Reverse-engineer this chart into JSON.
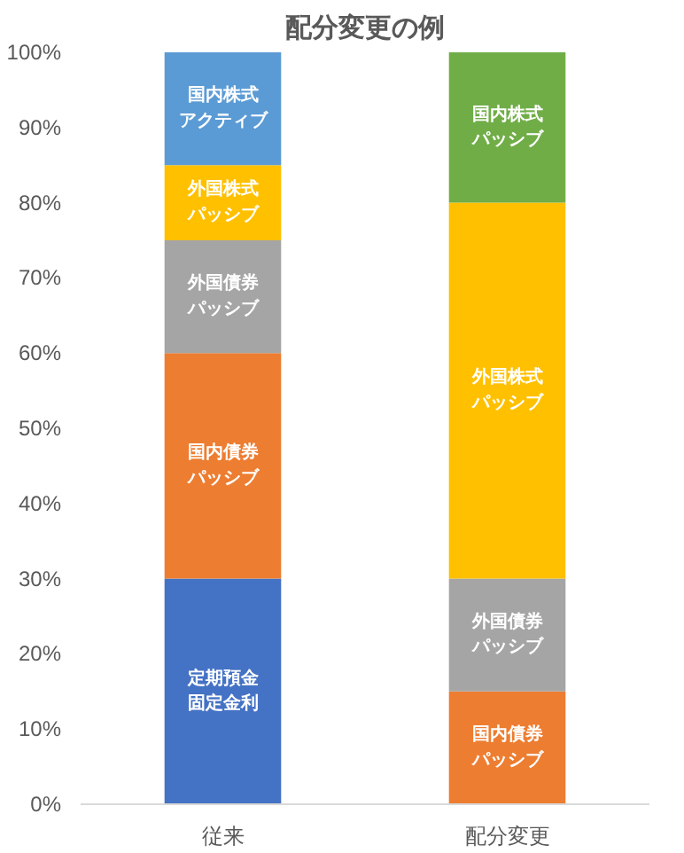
{
  "chart_data": {
    "type": "bar",
    "title": "配分変更の例",
    "categories": [
      "従来",
      "配分変更"
    ],
    "stacked": true,
    "series": [
      {
        "name": "定期預金固定金利",
        "color": "#4472c4",
        "values": [
          30,
          null
        ]
      },
      {
        "name": "国内債券パッシブ",
        "color": "#ed7d31",
        "values": [
          30,
          15
        ]
      },
      {
        "name": "外国債券パッシブ",
        "color": "#a5a5a5",
        "values": [
          15,
          15
        ]
      },
      {
        "name": "外国株式パッシブ",
        "color": "#ffc000",
        "values": [
          10,
          50
        ]
      },
      {
        "name": "国内株式アクティブ",
        "color": "#5b9bd5",
        "values": [
          15,
          null
        ]
      },
      {
        "name": "国内株式パッシブ",
        "color": "#70ad47",
        "values": [
          null,
          20
        ]
      }
    ],
    "ylim": [
      0,
      100
    ],
    "yticks": [
      {
        "value": 0,
        "label": "0%"
      },
      {
        "value": 10,
        "label": "10%"
      },
      {
        "value": 20,
        "label": "20%"
      },
      {
        "value": 30,
        "label": "30%"
      },
      {
        "value": 40,
        "label": "40%"
      },
      {
        "value": 50,
        "label": "50%"
      },
      {
        "value": 60,
        "label": "60%"
      },
      {
        "value": 70,
        "label": "70%"
      },
      {
        "value": 80,
        "label": "80%"
      },
      {
        "value": 90,
        "label": "90%"
      },
      {
        "value": 100,
        "label": "100%"
      }
    ],
    "grid": false
  }
}
